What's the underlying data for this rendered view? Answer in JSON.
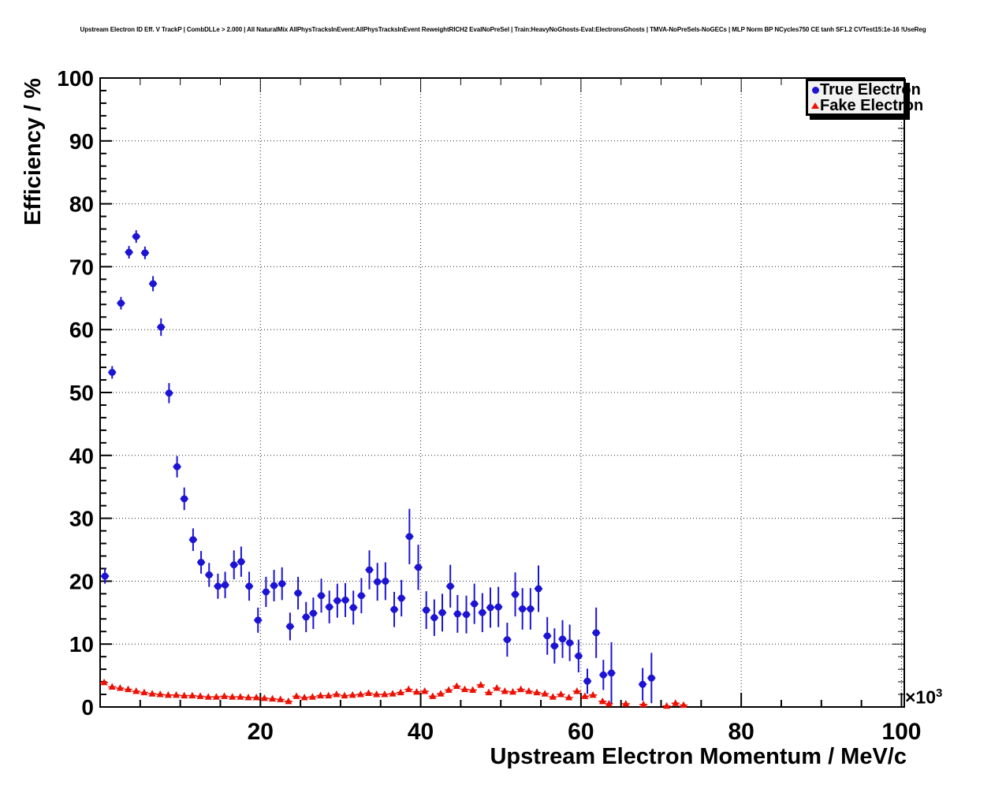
{
  "chart_data": {
    "type": "scatter",
    "title": "Upstream Electron ID Eff. V TrackP | CombDLLe > 2.000 | All NaturalMix AllPhysTracksInEvent:AllPhysTracksInEvent ReweightRICH2 EvalNoPreSel | Train:HeavyNoGhosts-Eval:ElectronsGhosts | TMVA-NoPreSels-NoGECs | MLP Norm BP NCycles750 CE tanh SF1.2 CVTest15:1e-16 !UseReg",
    "xlabel": "Upstream Electron Momentum / MeV/c",
    "ylabel": "Efficiency / %",
    "x_scale_base": "×10",
    "x_scale_exp": "3",
    "xlim": [
      0,
      100.35
    ],
    "ylim": [
      0,
      100
    ],
    "x_ticks": [
      20,
      40,
      60,
      80,
      100
    ],
    "x_tick_labels": [
      "20",
      "40",
      "60",
      "80",
      "100"
    ],
    "x_minor_step": 5,
    "y_ticks": [
      0,
      10,
      20,
      30,
      40,
      50,
      60,
      70,
      80,
      90,
      100
    ],
    "y_tick_labels": [
      "0",
      "10",
      "20",
      "30",
      "40",
      "50",
      "60",
      "70",
      "80",
      "90",
      "100"
    ],
    "y_minor_step": 2,
    "grid": "dotted",
    "legend_position": "top-right",
    "series": [
      {
        "name": "True Electron",
        "marker": "circle",
        "color": "#1c14d2",
        "x_halfwidth": 0.5,
        "points": [
          [
            0.6,
            20.8,
            1.2
          ],
          [
            1.5,
            53.2,
            1.0
          ],
          [
            2.6,
            64.2,
            1.0
          ],
          [
            3.6,
            72.3,
            1.0
          ],
          [
            4.5,
            74.8,
            1.0
          ],
          [
            5.6,
            72.2,
            1.0
          ],
          [
            6.6,
            67.3,
            1.2
          ],
          [
            7.6,
            60.4,
            1.4
          ],
          [
            8.6,
            49.9,
            1.6
          ],
          [
            9.6,
            38.2,
            1.7
          ],
          [
            10.5,
            33.1,
            1.8
          ],
          [
            11.6,
            26.6,
            1.8
          ],
          [
            12.6,
            23.0,
            1.8
          ],
          [
            13.6,
            21.0,
            1.9
          ],
          [
            14.7,
            19.2,
            2.0
          ],
          [
            15.6,
            19.4,
            2.1
          ],
          [
            16.7,
            22.6,
            2.3
          ],
          [
            17.6,
            23.1,
            2.4
          ],
          [
            18.6,
            19.2,
            2.3
          ],
          [
            19.7,
            13.8,
            2.0
          ],
          [
            20.7,
            18.3,
            2.4
          ],
          [
            21.7,
            19.3,
            2.5
          ],
          [
            22.7,
            19.6,
            2.6
          ],
          [
            23.7,
            12.8,
            2.2
          ],
          [
            24.7,
            18.1,
            2.6
          ],
          [
            25.7,
            14.3,
            2.4
          ],
          [
            26.6,
            14.9,
            2.5
          ],
          [
            27.6,
            17.7,
            2.7
          ],
          [
            28.6,
            15.9,
            2.6
          ],
          [
            29.6,
            16.9,
            2.7
          ],
          [
            30.6,
            17.0,
            2.7
          ],
          [
            31.6,
            15.8,
            2.7
          ],
          [
            32.6,
            17.7,
            2.8
          ],
          [
            33.6,
            21.8,
            3.1
          ],
          [
            34.6,
            19.9,
            3.0
          ],
          [
            35.6,
            20.0,
            3.0
          ],
          [
            36.7,
            15.5,
            2.8
          ],
          [
            37.6,
            17.3,
            2.9
          ],
          [
            38.6,
            27.1,
            4.4
          ],
          [
            39.7,
            22.2,
            3.6
          ],
          [
            40.7,
            15.4,
            3.0
          ],
          [
            41.7,
            14.2,
            2.9
          ],
          [
            42.7,
            15.0,
            3.0
          ],
          [
            43.7,
            19.2,
            3.4
          ],
          [
            44.6,
            14.8,
            3.0
          ],
          [
            45.7,
            14.7,
            3.0
          ],
          [
            46.7,
            16.4,
            3.2
          ],
          [
            47.7,
            15.0,
            3.1
          ],
          [
            48.7,
            15.8,
            3.2
          ],
          [
            49.7,
            15.9,
            3.2
          ],
          [
            50.8,
            10.7,
            2.7
          ],
          [
            51.8,
            17.9,
            3.5
          ],
          [
            52.7,
            15.6,
            3.3
          ],
          [
            53.7,
            15.6,
            3.3
          ],
          [
            54.7,
            18.8,
            3.7
          ],
          [
            55.8,
            11.3,
            3.0
          ],
          [
            56.7,
            9.7,
            2.8
          ],
          [
            57.7,
            10.8,
            3.0
          ],
          [
            58.6,
            10.2,
            2.9
          ],
          [
            59.7,
            8.1,
            2.6
          ],
          [
            60.8,
            4.1,
            2.0
          ],
          [
            61.9,
            11.8,
            4.0
          ],
          [
            62.8,
            5.1,
            2.4
          ],
          [
            63.8,
            5.4,
            4.9
          ],
          [
            67.7,
            3.6,
            2.6
          ],
          [
            68.8,
            4.6,
            4.0
          ]
        ]
      },
      {
        "name": "Fake Electron",
        "marker": "triangle",
        "color": "#ec1104",
        "x_halfwidth": 0.5,
        "points": [
          [
            0.5,
            3.9,
            0.3
          ],
          [
            1.5,
            3.2,
            0.25
          ],
          [
            2.5,
            3.0,
            0.25
          ],
          [
            3.5,
            2.8,
            0.25
          ],
          [
            4.5,
            2.5,
            0.2
          ],
          [
            5.5,
            2.3,
            0.2
          ],
          [
            6.5,
            2.1,
            0.2
          ],
          [
            7.5,
            2.0,
            0.2
          ],
          [
            8.5,
            1.9,
            0.2
          ],
          [
            9.5,
            1.9,
            0.2
          ],
          [
            10.5,
            1.8,
            0.2
          ],
          [
            11.5,
            1.8,
            0.2
          ],
          [
            12.5,
            1.7,
            0.2
          ],
          [
            13.5,
            1.6,
            0.2
          ],
          [
            14.5,
            1.6,
            0.2
          ],
          [
            15.5,
            1.7,
            0.2
          ],
          [
            16.5,
            1.6,
            0.2
          ],
          [
            17.5,
            1.6,
            0.2
          ],
          [
            18.5,
            1.5,
            0.2
          ],
          [
            19.5,
            1.5,
            0.2
          ],
          [
            20.5,
            1.4,
            0.2
          ],
          [
            21.5,
            1.3,
            0.2
          ],
          [
            22.5,
            1.2,
            0.2
          ],
          [
            23.5,
            0.9,
            0.15
          ],
          [
            24.5,
            1.7,
            0.2
          ],
          [
            25.5,
            1.5,
            0.2
          ],
          [
            26.5,
            1.6,
            0.2
          ],
          [
            27.5,
            1.8,
            0.2
          ],
          [
            28.5,
            1.8,
            0.2
          ],
          [
            29.5,
            2.0,
            0.2
          ],
          [
            30.5,
            1.8,
            0.2
          ],
          [
            31.5,
            1.9,
            0.2
          ],
          [
            32.5,
            2.0,
            0.2
          ],
          [
            33.5,
            2.2,
            0.25
          ],
          [
            34.5,
            2.0,
            0.25
          ],
          [
            35.5,
            2.0,
            0.25
          ],
          [
            36.5,
            2.1,
            0.25
          ],
          [
            37.5,
            2.3,
            0.3
          ],
          [
            38.5,
            2.8,
            0.35
          ],
          [
            39.5,
            2.4,
            0.3
          ],
          [
            40.5,
            2.5,
            0.3
          ],
          [
            41.5,
            1.7,
            0.25
          ],
          [
            42.5,
            2.1,
            0.3
          ],
          [
            43.5,
            2.7,
            0.35
          ],
          [
            44.5,
            3.3,
            0.4
          ],
          [
            45.5,
            2.8,
            0.35
          ],
          [
            46.5,
            2.7,
            0.35
          ],
          [
            47.5,
            3.5,
            0.4
          ],
          [
            48.5,
            2.3,
            0.3
          ],
          [
            49.5,
            3.0,
            0.4
          ],
          [
            50.5,
            2.5,
            0.35
          ],
          [
            51.5,
            2.4,
            0.35
          ],
          [
            52.5,
            2.8,
            0.4
          ],
          [
            53.5,
            2.5,
            0.4
          ],
          [
            54.5,
            2.3,
            0.4
          ],
          [
            55.5,
            2.1,
            0.35
          ],
          [
            56.5,
            1.6,
            0.3
          ],
          [
            57.5,
            2.0,
            0.35
          ],
          [
            58.5,
            1.5,
            0.3
          ],
          [
            59.5,
            2.5,
            0.45
          ],
          [
            60.5,
            1.7,
            0.35
          ],
          [
            61.5,
            1.9,
            0.4
          ],
          [
            62.7,
            0.9,
            0.25
          ],
          [
            63.5,
            0.5,
            0.2
          ],
          [
            65.6,
            0.5,
            0.25
          ],
          [
            67.8,
            0.4,
            0.25
          ],
          [
            70.7,
            0.15,
            0.15
          ],
          [
            71.8,
            0.6,
            0.3
          ],
          [
            72.8,
            0.3,
            0.2
          ]
        ]
      }
    ]
  }
}
